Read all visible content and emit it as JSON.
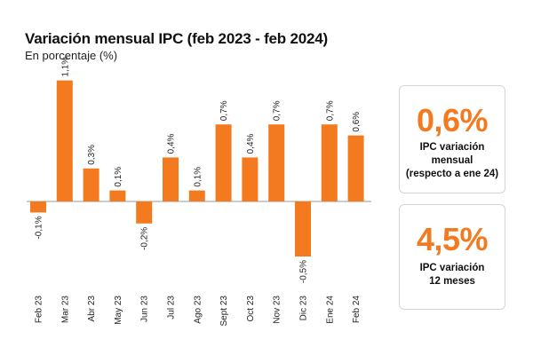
{
  "header": {
    "title": "Variación mensual IPC (feb 2023 - feb 2024)",
    "subtitle": "En porcentaje (%)"
  },
  "cards": {
    "monthly": {
      "value": "0,6%",
      "line1": "IPC variación",
      "line2": "mensual",
      "line3": "(respecto a ene 24)"
    },
    "annual": {
      "value": "4,5%",
      "line1": "IPC variación",
      "line2": "12 meses"
    }
  },
  "colors": {
    "accent": "#f47a20",
    "bar": "#f47a20",
    "axis": "#9a9a9a"
  },
  "chart_data": {
    "type": "bar",
    "title": "Variación mensual IPC (feb 2023 - feb 2024)",
    "subtitle": "En porcentaje (%)",
    "categories": [
      "Feb 23",
      "Mar 23",
      "Abr 23",
      "May 23",
      "Jun 23",
      "Jul 23",
      "Ago 23",
      "Sept 23",
      "Oct 23",
      "Nov 23",
      "Dic 23",
      "Ene 24",
      "Feb 24"
    ],
    "values": [
      -0.1,
      1.1,
      0.3,
      0.1,
      -0.2,
      0.4,
      0.1,
      0.7,
      0.4,
      0.7,
      -0.5,
      0.7,
      0.6
    ],
    "data_labels": [
      "-0,1%",
      "1,1%",
      "0,3%",
      "0,1%",
      "-0,2%",
      "0,4%",
      "0,1%",
      "0,7%",
      "0,4%",
      "0,7%",
      "-0,5%",
      "0,7%",
      "0,6%"
    ],
    "xlabel": "",
    "ylabel": "",
    "ylim": [
      -0.5,
      1.1
    ],
    "grid": false,
    "legend": "none"
  }
}
